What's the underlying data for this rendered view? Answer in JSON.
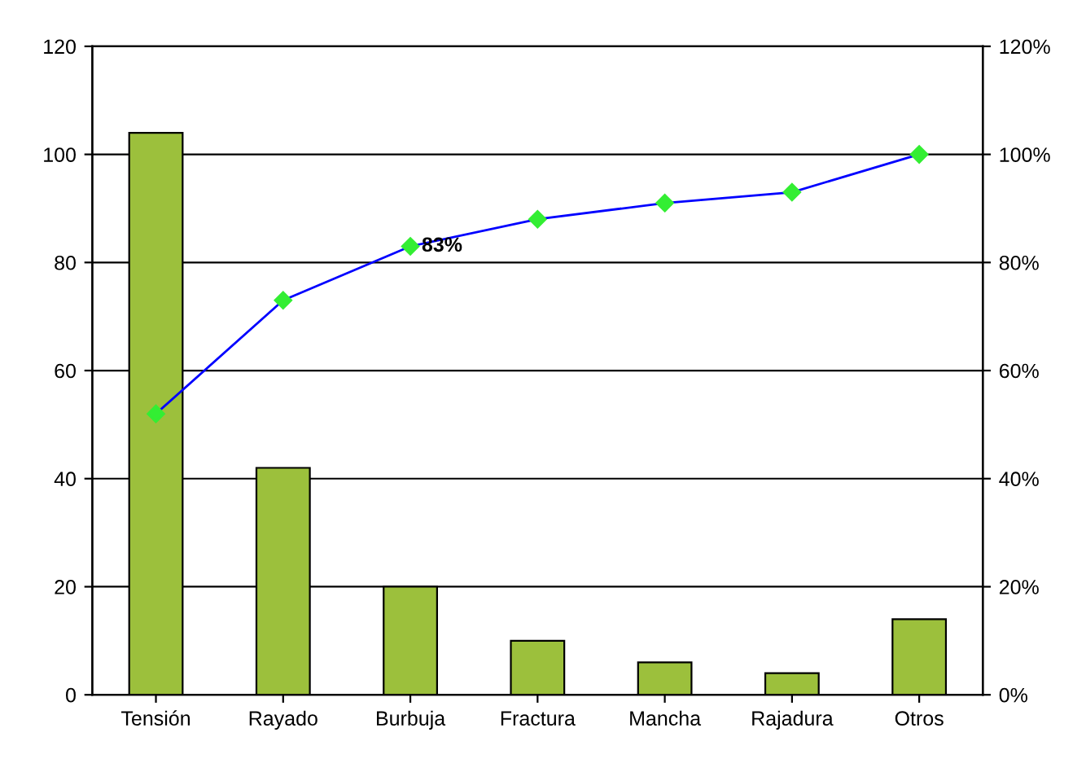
{
  "chart_data": {
    "type": "bar",
    "categories": [
      "Tensión",
      "Rayado",
      "Burbuja",
      "Fractura",
      "Mancha",
      "Rajadura",
      "Otros"
    ],
    "series": [
      {
        "color": "#9cc03c",
        "values": [
          104,
          42,
          20,
          10,
          6,
          4,
          14
        ]
      },
      {
        "type": "line",
        "axis": "y2",
        "color": "#0000ff",
        "marker": "diamond",
        "values": [
          52,
          73,
          83,
          88,
          91,
          93,
          100
        ]
      }
    ],
    "ylim": [
      0,
      120
    ],
    "yticks": [
      0,
      20,
      40,
      60,
      80,
      100,
      120
    ],
    "y2lim": [
      0,
      120
    ],
    "y2ticks": [
      {
        "value": 0,
        "label": "0%"
      },
      {
        "value": 20,
        "label": "20%"
      },
      {
        "value": 40,
        "label": "40%"
      },
      {
        "value": 60,
        "label": "60%"
      },
      {
        "value": 80,
        "label": "80%"
      },
      {
        "value": 100,
        "label": "100%"
      },
      {
        "value": 120,
        "label": "120%"
      }
    ],
    "grid": "y",
    "annotations": [
      {
        "text": "83%",
        "x": "Burbuja",
        "y": 83
      }
    ]
  }
}
